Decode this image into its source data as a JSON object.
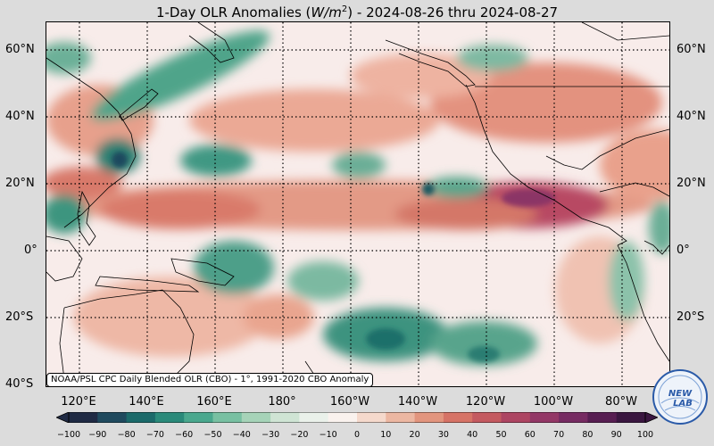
{
  "title": {
    "prefix": "1-Day OLR Anomalies (",
    "unit_base": "W/m",
    "unit_exp": "2",
    "suffix": ") - 2024-08-26 thru 2024-08-27"
  },
  "latitude_labels": [
    "60°N",
    "40°N",
    "20°N",
    "0°",
    "20°S",
    "40°S"
  ],
  "longitude_labels": [
    "120°E",
    "140°E",
    "160°E",
    "180°",
    "160°W",
    "140°W",
    "120°W",
    "100°W",
    "80°W"
  ],
  "source_note": "NOAA/PSL CPC Daily Blended OLR (CBO) - 1°, 1991-2020 CBO Anomaly",
  "colorbar": {
    "ticks": [
      "−100",
      "−90",
      "−80",
      "−70",
      "−60",
      "−50",
      "−40",
      "−30",
      "−20",
      "−10",
      "0",
      "10",
      "20",
      "30",
      "40",
      "50",
      "60",
      "70",
      "80",
      "90",
      "100"
    ],
    "min": -100,
    "max": 100,
    "colors": [
      "#1f2a44",
      "#1f4a5e",
      "#1b6a6a",
      "#2a8a7a",
      "#4aa88e",
      "#78c0a2",
      "#a6d3b8",
      "#cfe4d4",
      "#eaf1ea",
      "#faf2ee",
      "#f5d9cc",
      "#ecb7a2",
      "#e2957e",
      "#d67366",
      "#c45a60",
      "#ad4562",
      "#933766",
      "#762b62",
      "#571e52",
      "#3a1640"
    ]
  },
  "logo": {
    "text_top": "NEW",
    "text_bottom": "LAB",
    "color": "#2a5aa8"
  },
  "colors": {
    "negative_strong": "#1d6e6a",
    "negative_mild": "#9ccbb2",
    "neutral": "#f8ecea",
    "positive_mild": "#e9a592",
    "positive_strong": "#a23b5c",
    "land_line": "#000000",
    "grid_line": "#000000"
  }
}
